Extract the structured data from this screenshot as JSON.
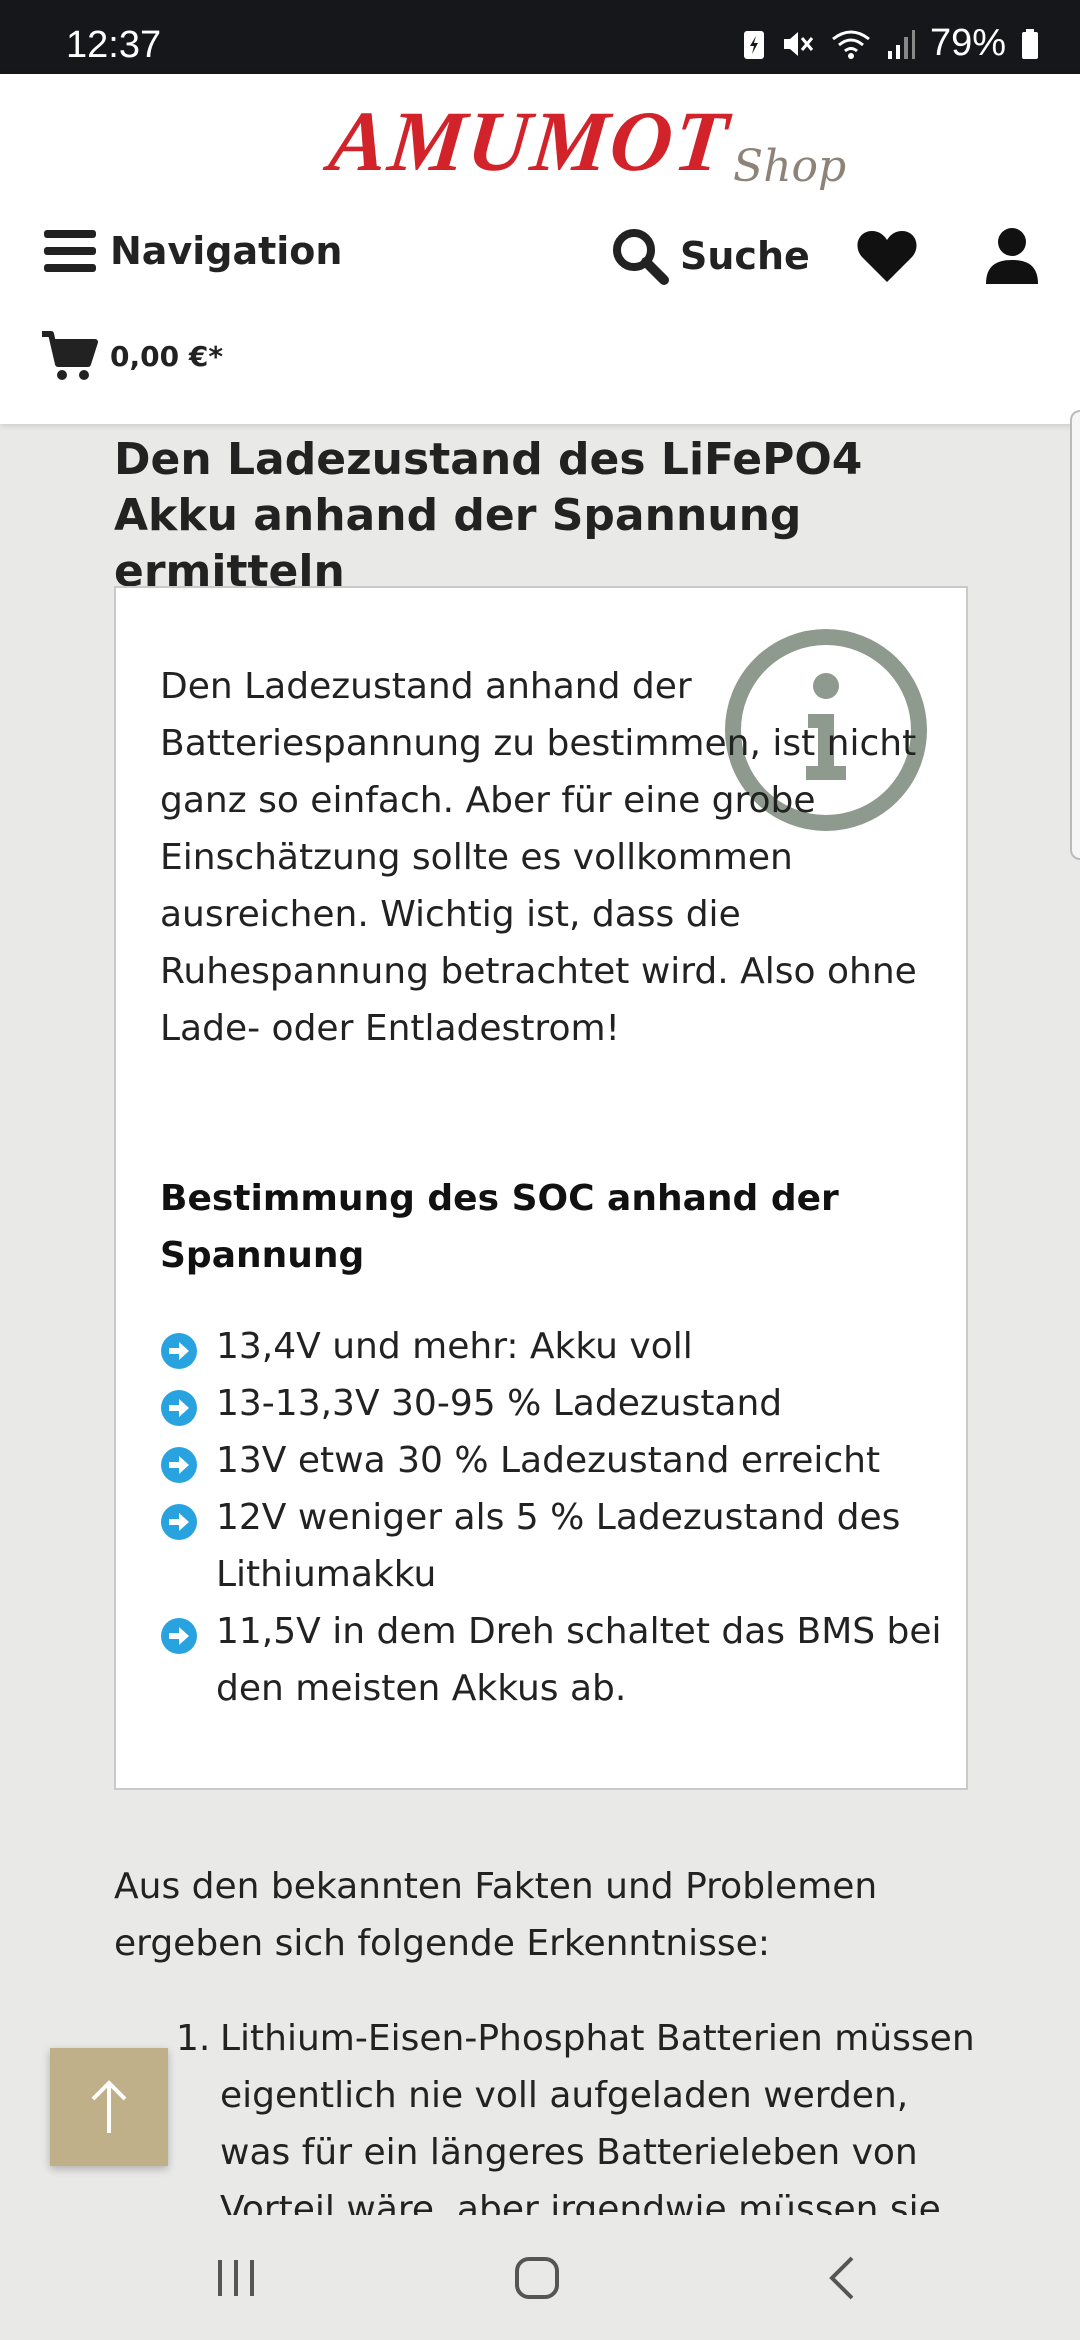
{
  "status_bar": {
    "time": "12:37",
    "battery_percent": "79%",
    "icons": [
      "battery-saver-icon",
      "mute-icon",
      "wifi-icon",
      "signal-icon",
      "battery-icon"
    ]
  },
  "header": {
    "logo_main": "AMUMOT",
    "logo_sub": "Shop",
    "navigation_label": "Navigation",
    "search_label": "Suche",
    "cart_value": "0,00 €*"
  },
  "article": {
    "title": "Den Ladezustand des LiFePO4 Akku anhand der Spannung ermitteln",
    "infobox": {
      "text": "Den Ladezustand anhand der Batteriespannung zu bestimmen, ist nicht ganz so einfach. Aber für eine grobe Einschätzung sollte es vollkommen ausreichen. Wichtig ist, dass die Ruhespannung betrachtet wird. Also ohne Lade- oder Entladestrom!",
      "heading": "Bestimmung des SOC anhand der Spannung",
      "bullets": [
        "13,4V und mehr: Akku voll",
        "13-13,3V 30-95 % Ladezustand",
        "13V etwa 30 % Ladezustand erreicht",
        "12V weniger als 5 % Ladezustand des Lithiumakku",
        "11,5V in dem Dreh schaltet das BMS bei den meisten Akkus ab."
      ]
    },
    "paragraph": "Aus den bekannten Fakten und Problemen ergeben sich folgende Erkenntnisse:",
    "ordered_list": [
      {
        "number": "1.",
        "text": "Lithium-Eisen-Phosphat Batterien müssen eigentlich nie voll aufgeladen werden, was für ein längeres Batterieleben von Vorteil wäre, aber irgendwie müssen sie es"
      }
    ]
  },
  "colors": {
    "brand_red": "#d2232a",
    "accent_blue": "#29a3e0",
    "info_icon_gray": "#8e9a8e",
    "to_top_bg": "#bfb08a"
  }
}
